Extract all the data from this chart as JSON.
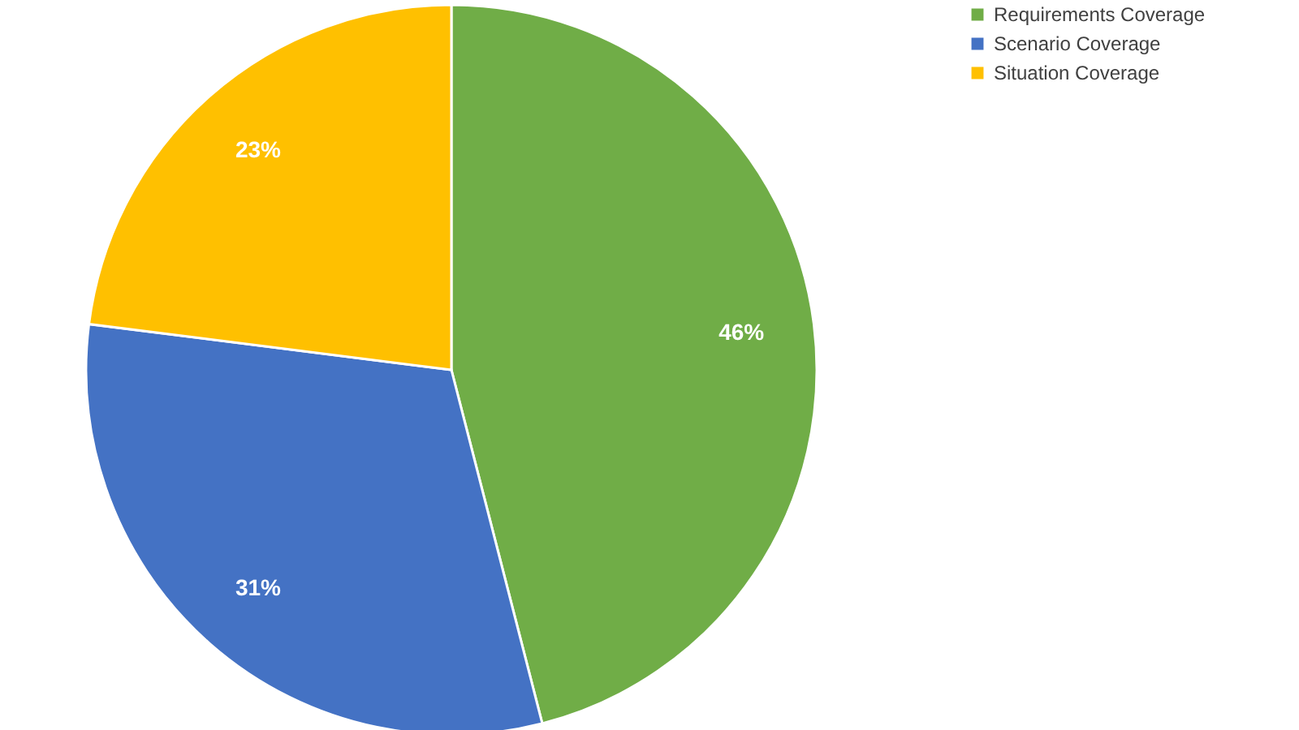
{
  "chart_data": {
    "type": "pie",
    "categories": [
      "Requirements Coverage",
      "Scenario Coverage",
      "Situation Coverage"
    ],
    "values": [
      46,
      31,
      23
    ],
    "colors": [
      "#70ad47",
      "#4472c4",
      "#ffc000"
    ],
    "value_labels": [
      "46%",
      "31%",
      "23%"
    ],
    "legend": "right"
  }
}
